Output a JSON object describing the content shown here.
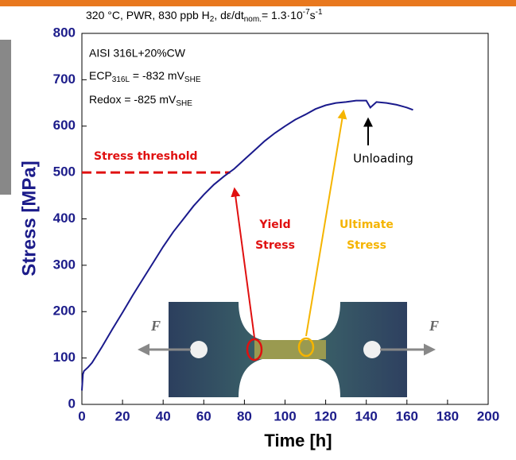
{
  "chart_data": {
    "type": "line",
    "title": [
      "320 °C, PWR, 830 ppb H",
      "2",
      ", dε/dt",
      "nom.",
      "= 1.3·10",
      "-7",
      "s",
      "-1"
    ],
    "xlabel": "Time  [h]",
    "ylabel": "Stress  [MPa]",
    "xlim": [
      0,
      200
    ],
    "xticks": [
      0,
      20,
      40,
      60,
      80,
      100,
      120,
      140,
      160,
      180,
      200
    ],
    "ylim": [
      0,
      800
    ],
    "yticks": [
      0,
      100,
      200,
      300,
      400,
      500,
      600,
      700,
      800
    ],
    "x": [
      0,
      0.5,
      1,
      3,
      5,
      10,
      15,
      20,
      25,
      30,
      35,
      40,
      45,
      50,
      55,
      60,
      65,
      70,
      75,
      80,
      85,
      90,
      95,
      100,
      105,
      110,
      115,
      120,
      125,
      130,
      135,
      140,
      142,
      145,
      150,
      155,
      160,
      163
    ],
    "series": [
      {
        "name": "AISI 316L+20%CW",
        "color": "#1a1a8c",
        "values": [
          30,
          65,
          72,
          80,
          90,
          125,
          162,
          198,
          235,
          270,
          305,
          340,
          372,
          400,
          428,
          452,
          474,
          492,
          508,
          528,
          548,
          568,
          585,
          600,
          614,
          625,
          637,
          645,
          650,
          652,
          655,
          655,
          640,
          652,
          650,
          646,
          640,
          635
        ]
      }
    ],
    "box_text": {
      "material": "AISI 316L+20%CW",
      "ecp": [
        "ECP",
        "316L",
        " = -832 mV",
        "SHE"
      ],
      "redox": [
        "Redox = -825 mV",
        "SHE"
      ]
    },
    "annotations": {
      "threshold_label": "Stress threshold",
      "threshold": 500,
      "yield": [
        "Yield",
        "Stress"
      ],
      "ultimate": [
        "Ultimate",
        "Stress"
      ],
      "unloading": "Unloading",
      "force": "F"
    }
  }
}
